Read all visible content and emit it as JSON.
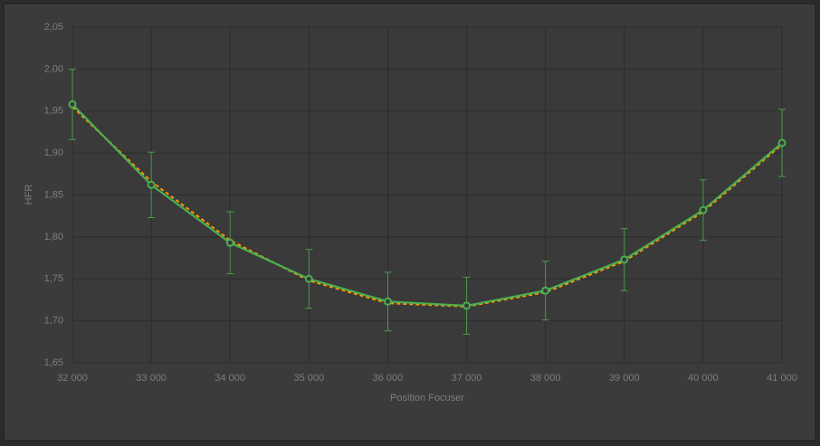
{
  "chart_data": {
    "type": "line",
    "x_label": "Position Focuser",
    "y_label": "HFR",
    "x": [
      32000,
      33000,
      34000,
      35000,
      36000,
      37000,
      38000,
      39000,
      40000,
      41000
    ],
    "series": [
      {
        "color": "#ff9900",
        "dashed": true,
        "markers": false,
        "values": [
          1.955,
          1.866,
          1.796,
          1.748,
          1.721,
          1.717,
          1.734,
          1.771,
          1.83,
          1.91
        ]
      },
      {
        "color": "#4caf50",
        "dashed": false,
        "markers": true,
        "values": [
          1.958,
          1.862,
          1.793,
          1.75,
          1.723,
          1.718,
          1.736,
          1.773,
          1.832,
          1.912
        ],
        "errors": [
          0.042,
          0.039,
          0.037,
          0.035,
          0.035,
          0.034,
          0.035,
          0.037,
          0.036,
          0.04
        ]
      }
    ],
    "xlim": [
      32000,
      41000
    ],
    "xticks": [
      {
        "value": 32000,
        "label": "32 000"
      },
      {
        "value": 33000,
        "label": "33 000"
      },
      {
        "value": 34000,
        "label": "34 000"
      },
      {
        "value": 35000,
        "label": "35 000"
      },
      {
        "value": 36000,
        "label": "36 000"
      },
      {
        "value": 37000,
        "label": "37 000"
      },
      {
        "value": 38000,
        "label": "38 000"
      },
      {
        "value": 39000,
        "label": "39 000"
      },
      {
        "value": 40000,
        "label": "40 000"
      },
      {
        "value": 41000,
        "label": "41 000"
      }
    ],
    "ylim": [
      1.65,
      2.05
    ],
    "yticks": [
      {
        "value": 1.65,
        "label": "1,65"
      },
      {
        "value": 1.7,
        "label": "1,70"
      },
      {
        "value": 1.75,
        "label": "1,75"
      },
      {
        "value": 1.8,
        "label": "1,80"
      },
      {
        "value": 1.85,
        "label": "1,85"
      },
      {
        "value": 1.9,
        "label": "1,90"
      },
      {
        "value": 1.95,
        "label": "1,95"
      },
      {
        "value": 2.0,
        "label": "2,00"
      },
      {
        "value": 2.05,
        "label": "2,05"
      }
    ],
    "grid": true
  }
}
